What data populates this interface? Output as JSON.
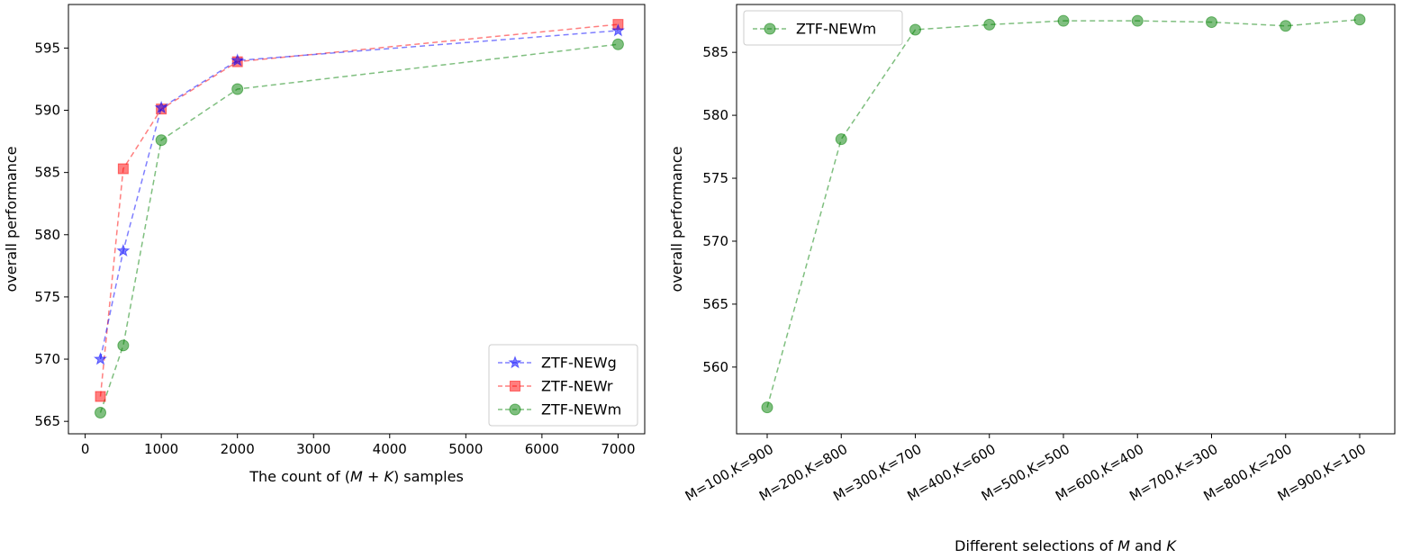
{
  "colors": {
    "blue": "#0000ff",
    "red": "#ff0000",
    "green": "#008000",
    "frame": "#000000",
    "legend_border": "#cccccc"
  },
  "chart_data": [
    {
      "type": "line",
      "xlabel": "The count of (M + K) samples",
      "ylabel": "overall performance",
      "xlim": [
        -220,
        7350
      ],
      "ylim": [
        564.0,
        598.5
      ],
      "xticks": [
        0,
        1000,
        2000,
        3000,
        4000,
        5000,
        6000,
        7000
      ],
      "yticks": [
        565,
        570,
        575,
        580,
        585,
        590,
        595
      ],
      "legend_position": "lower right",
      "grid": false,
      "series": [
        {
          "name": "ZTF-NEWg",
          "marker": "star",
          "color": "#0000ff",
          "x": [
            200,
            500,
            1000,
            2000,
            7000
          ],
          "y": [
            570.0,
            578.7,
            590.2,
            594.0,
            596.4
          ]
        },
        {
          "name": "ZTF-NEWr",
          "marker": "square",
          "color": "#ff0000",
          "x": [
            200,
            500,
            1000,
            2000,
            7000
          ],
          "y": [
            567.0,
            585.3,
            590.1,
            593.9,
            596.9
          ]
        },
        {
          "name": "ZTF-NEWm",
          "marker": "circle",
          "color": "#008000",
          "x": [
            200,
            500,
            1000,
            2000,
            7000
          ],
          "y": [
            565.7,
            571.1,
            587.6,
            591.7,
            595.3
          ]
        }
      ]
    },
    {
      "type": "line",
      "xlabel": "Different selections of M and K",
      "ylabel": "overall performance",
      "categories": [
        "M=100,K=900",
        "M=200,K=800",
        "M=300,K=700",
        "M=400,K=600",
        "M=500,K=500",
        "M=600,K=400",
        "M=700,K=300",
        "M=800,K=200",
        "M=900,K=100"
      ],
      "ylim": [
        554.7,
        588.8
      ],
      "yticks": [
        560,
        565,
        570,
        575,
        580,
        585
      ],
      "legend_position": "upper left",
      "grid": false,
      "series": [
        {
          "name": "ZTF-NEWm",
          "marker": "circle",
          "color": "#008000",
          "values": [
            556.8,
            578.1,
            586.8,
            587.2,
            587.5,
            587.5,
            587.4,
            587.1,
            587.6
          ]
        }
      ]
    }
  ]
}
